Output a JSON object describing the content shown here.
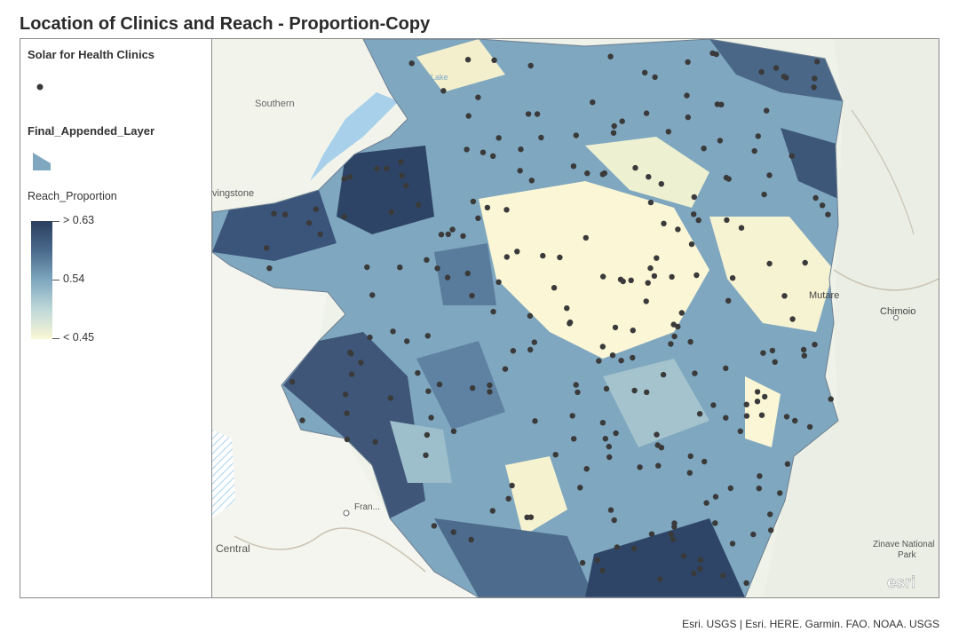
{
  "title": "Location of Clinics and Reach - Proportion-Copy",
  "legend": {
    "layer1_title": "Solar for Health Clinics",
    "layer2_title": "Final_Appended_Layer",
    "field_label": "Reach_Proportion",
    "high_label": "> 0.63",
    "mid_label": "0.54",
    "low_label": "< 0.45"
  },
  "basemap_labels": {
    "southern": "Southern",
    "livingstone": "vingstone",
    "mutare": "Mutare",
    "chimoio": "Chimoio",
    "central": "Central",
    "francistown": "Fran...",
    "zinave": "Zinave National",
    "park": "Park",
    "esri": "esri",
    "lake": "Lake"
  },
  "colors": {
    "high": "#2b3e5e",
    "mid": "#7fa7bf",
    "low": "#fbf7d6",
    "clinic": "#3a3a3a"
  },
  "attribution": "Esri. USGS | Esri. HERE. Garmin. FAO. NOAA. USGS"
}
